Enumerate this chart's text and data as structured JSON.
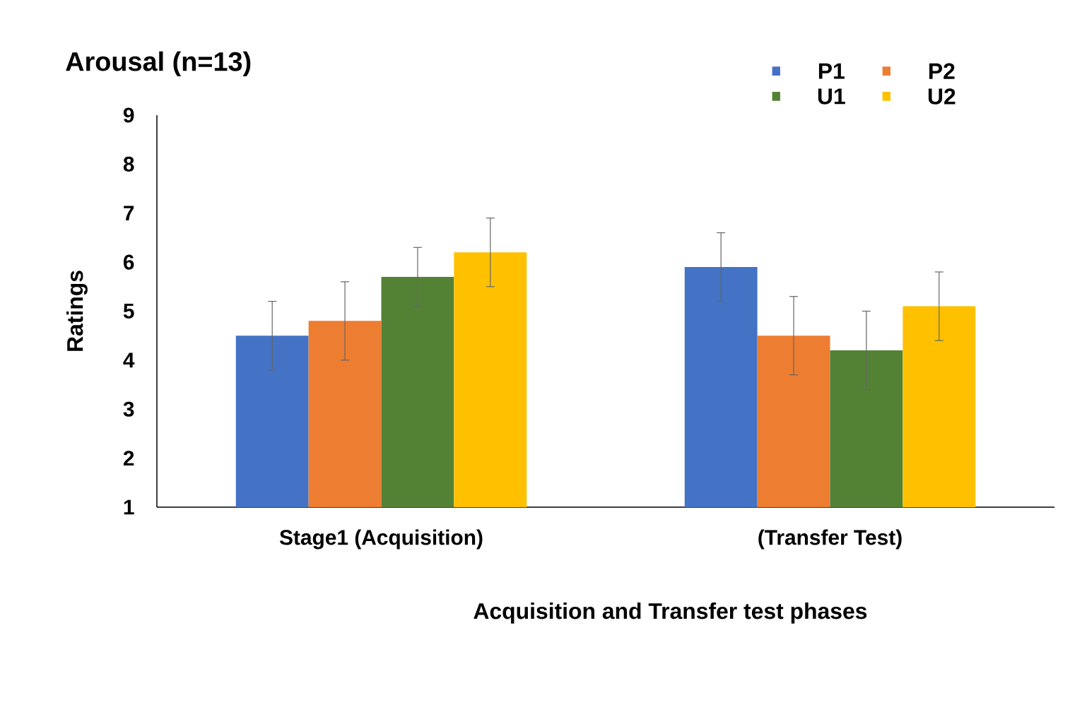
{
  "chart_data": {
    "type": "bar",
    "title": "Arousal (n=13)",
    "xlabel": "Acquisition and Transfer test phases",
    "ylabel": "Ratings",
    "categories": [
      "Stage1 (Acquisition)",
      "(Transfer Test)"
    ],
    "series": [
      {
        "name": "P1",
        "color": "#4472c4",
        "values": [
          4.5,
          5.9
        ],
        "errors": [
          0.7,
          0.7
        ]
      },
      {
        "name": "P2",
        "color": "#ed7d31",
        "values": [
          4.8,
          4.5
        ],
        "errors": [
          0.8,
          0.8
        ]
      },
      {
        "name": "U1",
        "color": "#548235",
        "values": [
          5.7,
          4.2
        ],
        "errors": [
          0.6,
          0.8
        ]
      },
      {
        "name": "U2",
        "color": "#ffc000",
        "values": [
          6.2,
          5.1
        ],
        "errors": [
          0.7,
          0.7
        ]
      }
    ],
    "ylim": [
      1,
      9
    ],
    "yticks": [
      1,
      2,
      3,
      4,
      5,
      6,
      7,
      8,
      9
    ],
    "legend": "top right"
  }
}
